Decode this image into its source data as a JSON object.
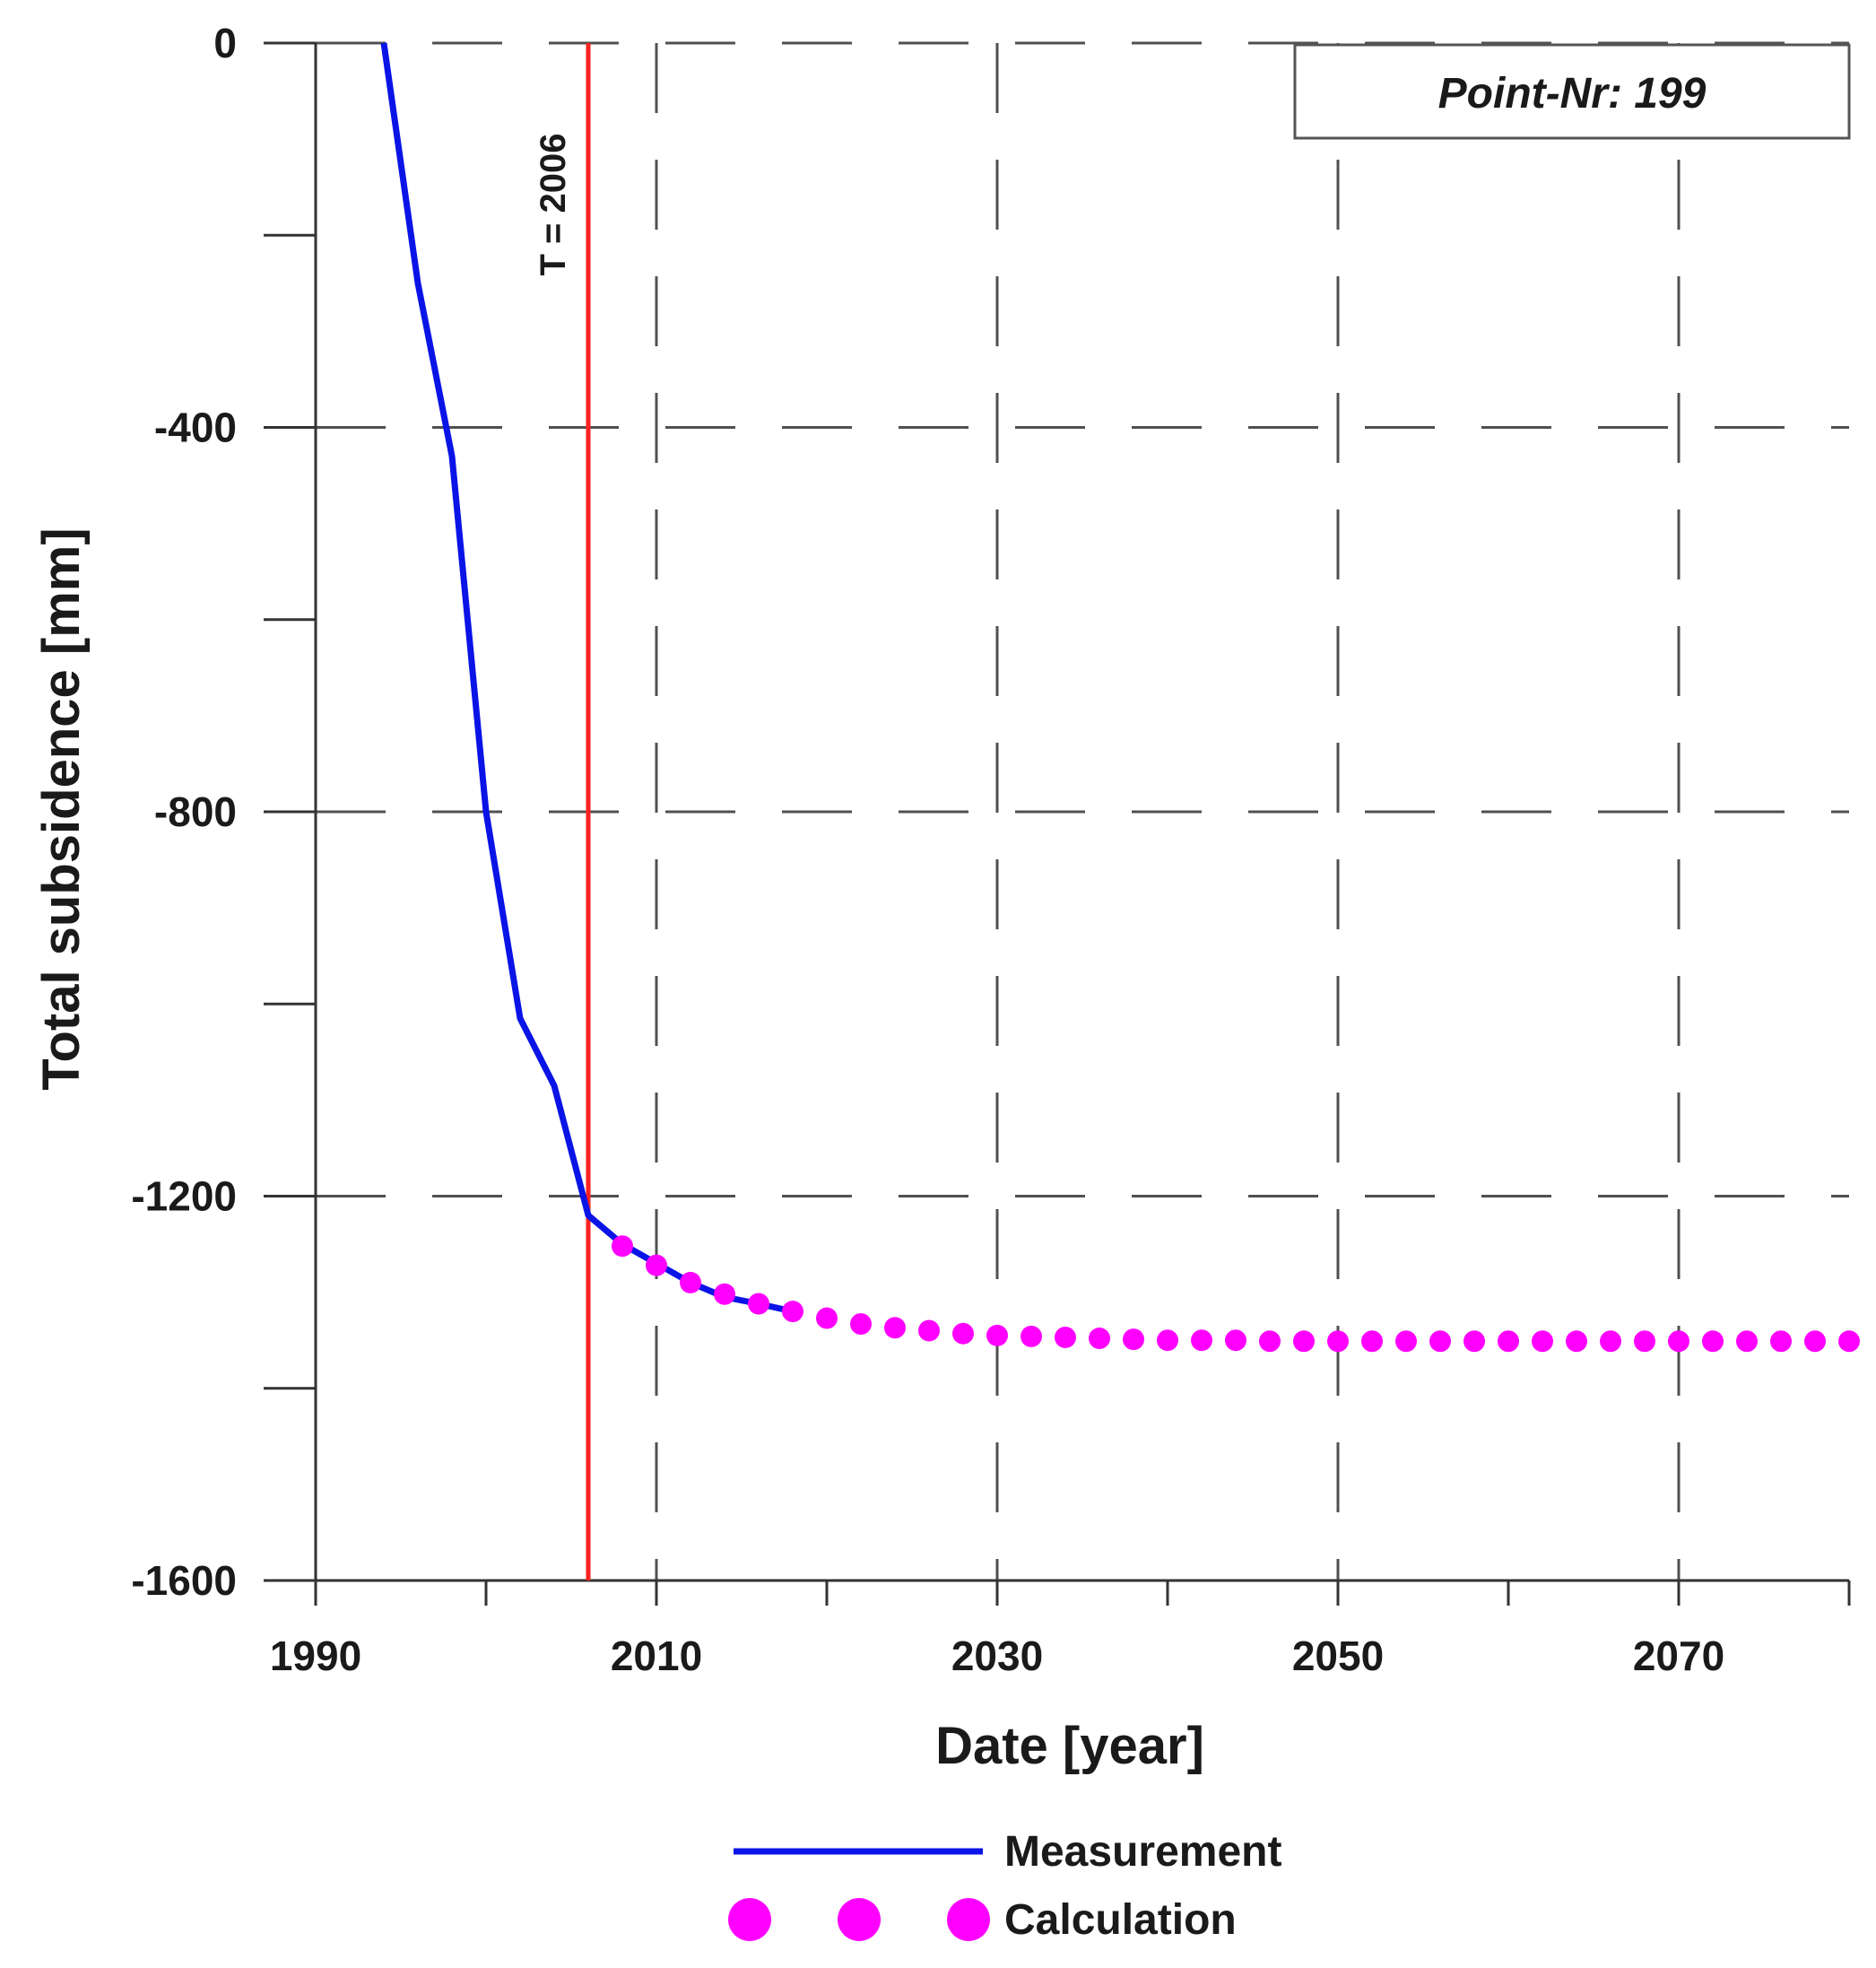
{
  "chart_data": {
    "type": "line",
    "info_box": "Point-Nr: 199",
    "xlabel": "Date [year]",
    "ylabel": "Total subsidence [mm]",
    "xlim": [
      1990,
      2080
    ],
    "ylim": [
      -1600,
      0
    ],
    "x_ticks": [
      1990,
      2010,
      2030,
      2050,
      2070
    ],
    "x_minor_ticks": [
      1990,
      2000,
      2010,
      2020,
      2030,
      2040,
      2050,
      2060,
      2070,
      2080
    ],
    "y_ticks": [
      0,
      -400,
      -800,
      -1200,
      -1600
    ],
    "y_minor_ticks": [
      0,
      -200,
      -400,
      -600,
      -800,
      -1000,
      -1200,
      -1400,
      -1600
    ],
    "grid": true,
    "annotation": {
      "label": "T = 2006",
      "x": 2006,
      "color": "#ff2020"
    },
    "legend_position": "bottom-center",
    "series": [
      {
        "name": "Measurement",
        "style": "line",
        "color": "#0a14e6",
        "x": [
          1994,
          1996,
          1998,
          2000,
          2002,
          2004,
          2006,
          2008,
          2010,
          2012,
          2014,
          2016,
          2018
        ],
        "y": [
          0,
          -250,
          -430,
          -800,
          -1015,
          -1085,
          -1220,
          -1250,
          -1270,
          -1290,
          -1305,
          -1312,
          -1320
        ]
      },
      {
        "name": "Calculation",
        "style": "dotted",
        "color": "#ff00ff",
        "x": [
          2008,
          2010,
          2012,
          2014,
          2016,
          2018,
          2020,
          2022,
          2024,
          2026,
          2028,
          2030,
          2032,
          2034,
          2036,
          2038,
          2040,
          2042,
          2044,
          2046,
          2048,
          2050,
          2052,
          2054,
          2056,
          2058,
          2060,
          2062,
          2064,
          2066,
          2068,
          2070,
          2072,
          2074,
          2076,
          2078,
          2080
        ],
        "y": [
          -1252,
          -1272,
          -1290,
          -1302,
          -1312,
          -1320,
          -1327,
          -1333,
          -1337,
          -1340,
          -1343,
          -1345,
          -1346,
          -1347,
          -1348,
          -1349,
          -1350,
          -1350,
          -1350,
          -1351,
          -1351,
          -1351,
          -1351,
          -1351,
          -1351,
          -1351,
          -1351,
          -1351,
          -1351,
          -1351,
          -1351,
          -1351,
          -1351,
          -1351,
          -1351,
          -1351,
          -1351
        ]
      }
    ]
  }
}
